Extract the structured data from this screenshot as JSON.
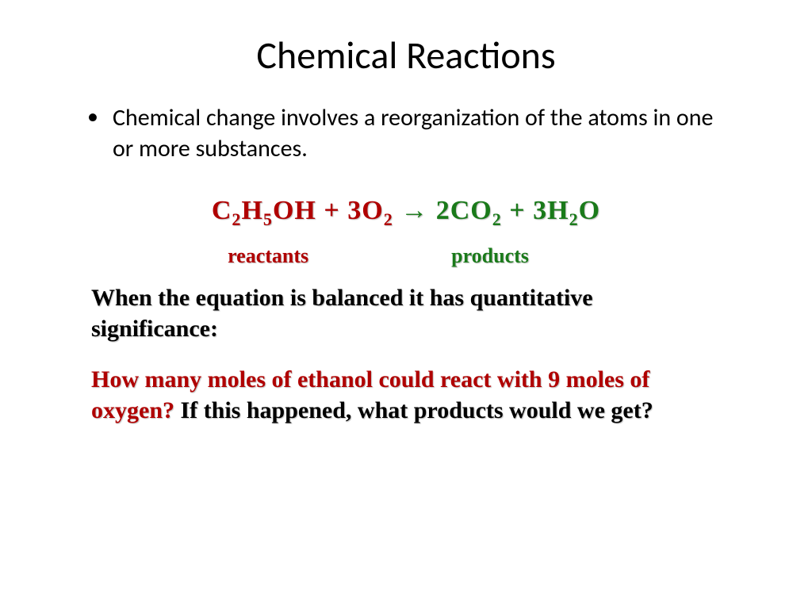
{
  "title": "Chemical Reactions",
  "bullet": "Chemical change involves a reorganization of  the atoms in one or more substances.",
  "equation": {
    "reactant1_coef": "C",
    "reactant1_sub1": "2",
    "reactant1_mid": "H",
    "reactant1_sub2": "5",
    "reactant1_end": "OH",
    "plus1": "   +   ",
    "reactant2_coef": "3O",
    "reactant2_sub": "2",
    "arrow": "   →   ",
    "product1_coef": "2CO",
    "product1_sub": "2",
    "plus2": "   +   ",
    "product2_coef": "3H",
    "product2_sub": "2",
    "product2_end": "O"
  },
  "labels": {
    "reactants": "reactants",
    "products": "products"
  },
  "para1": "When the equation is balanced it has quantitative significance:",
  "para2": {
    "q": "How many moles of ethanol could react with 9 moles of oxygen?",
    "rest": " If this happened, what products would we get?"
  },
  "colors": {
    "reactant": "#b00000",
    "product": "#1a7a1a",
    "text": "#000000",
    "background": "#ffffff"
  },
  "fonts": {
    "title_family": "Calibri",
    "title_size_pt": 40,
    "body_family": "Calibri",
    "body_size_pt": 24,
    "comic_family": "Comic Sans MS",
    "equation_size_pt": 28,
    "label_size_pt": 22,
    "para_size_pt": 24
  }
}
